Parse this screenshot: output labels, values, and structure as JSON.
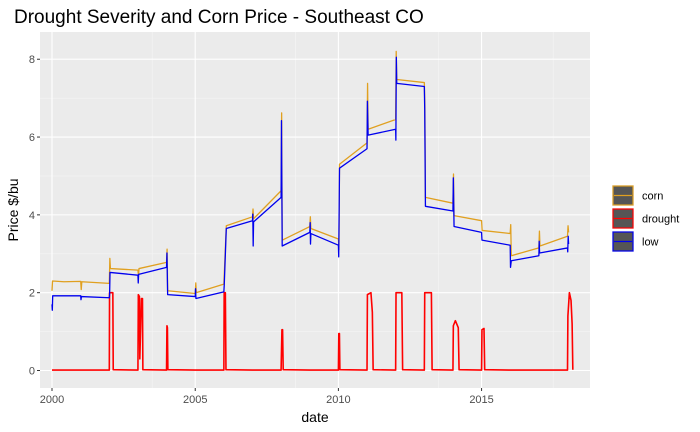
{
  "chart_data": {
    "type": "line",
    "title": "Drought Severity and Corn Price - Southeast CO",
    "xlabel": "date",
    "ylabel": "Price $/bu",
    "x_axis": "date",
    "xlim": [
      "1999-08-01",
      "2018-10-15"
    ],
    "ylim": [
      -0.45,
      8.7
    ],
    "x_ticks": [
      {
        "date": "2000-01-01",
        "label": "2000"
      },
      {
        "date": "2005-01-01",
        "label": "2005"
      },
      {
        "date": "2010-01-01",
        "label": "2010"
      },
      {
        "date": "2015-01-01",
        "label": "2015"
      }
    ],
    "y_ticks": [
      0,
      2,
      4,
      6,
      8
    ],
    "grid": true,
    "panel_background": "#ebebeb",
    "legend_position": "right",
    "series": [
      {
        "name": "corn",
        "color": "#e0a020",
        "points": [
          [
            "2000-01-01",
            2.05
          ],
          [
            "2000-01-08",
            2.3
          ],
          [
            "2000-06-01",
            2.28
          ],
          [
            "2001-01-01",
            2.29
          ],
          [
            "2001-01-08",
            2.08
          ],
          [
            "2001-01-15",
            2.28
          ],
          [
            "2002-01-01",
            2.24
          ],
          [
            "2002-01-08",
            2.88
          ],
          [
            "2002-01-15",
            2.62
          ],
          [
            "2003-01-01",
            2.58
          ],
          [
            "2003-01-08",
            2.42
          ],
          [
            "2003-01-15",
            2.62
          ],
          [
            "2004-01-01",
            2.78
          ],
          [
            "2004-01-08",
            3.12
          ],
          [
            "2004-01-15",
            2.05
          ],
          [
            "2005-01-01",
            1.98
          ],
          [
            "2005-01-08",
            2.25
          ],
          [
            "2005-01-15",
            2.0
          ],
          [
            "2006-01-01",
            2.22
          ],
          [
            "2006-01-08",
            2.55
          ],
          [
            "2006-02-01",
            3.72
          ],
          [
            "2007-01-01",
            3.95
          ],
          [
            "2007-01-08",
            4.15
          ],
          [
            "2007-01-15",
            3.9
          ],
          [
            "2008-01-01",
            4.62
          ],
          [
            "2008-01-08",
            6.62
          ],
          [
            "2008-01-15",
            3.35
          ],
          [
            "2009-01-01",
            3.7
          ],
          [
            "2009-01-08",
            3.95
          ],
          [
            "2009-01-15",
            3.65
          ],
          [
            "2010-01-01",
            3.38
          ],
          [
            "2010-01-08",
            3.1
          ],
          [
            "2010-01-15",
            5.3
          ],
          [
            "2011-01-01",
            5.85
          ],
          [
            "2011-01-08",
            7.38
          ],
          [
            "2011-01-15",
            6.2
          ],
          [
            "2012-01-01",
            6.45
          ],
          [
            "2012-01-08",
            8.2
          ],
          [
            "2012-01-15",
            7.48
          ],
          [
            "2013-01-01",
            7.4
          ],
          [
            "2013-01-08",
            6.8
          ],
          [
            "2013-01-15",
            4.45
          ],
          [
            "2014-01-01",
            4.3
          ],
          [
            "2014-01-08",
            5.05
          ],
          [
            "2014-01-15",
            3.98
          ],
          [
            "2015-01-01",
            3.85
          ],
          [
            "2015-01-08",
            3.6
          ],
          [
            "2016-01-01",
            3.52
          ],
          [
            "2016-01-08",
            3.75
          ],
          [
            "2016-01-15",
            2.95
          ],
          [
            "2017-01-01",
            3.15
          ],
          [
            "2017-01-08",
            3.58
          ],
          [
            "2017-01-15",
            3.2
          ],
          [
            "2018-01-01",
            3.45
          ],
          [
            "2018-01-08",
            3.72
          ],
          [
            "2018-01-15",
            3.55
          ]
        ]
      },
      {
        "name": "drought",
        "color": "#ff0000",
        "points": [
          [
            "2000-01-01",
            0.01
          ],
          [
            "2000-03-01",
            0.01
          ],
          [
            "2001-01-01",
            0.01
          ],
          [
            "2001-03-01",
            0.01
          ],
          [
            "2002-01-01",
            0.01
          ],
          [
            "2002-01-04",
            2.0
          ],
          [
            "2002-02-15",
            2.0
          ],
          [
            "2002-02-20",
            0.02
          ],
          [
            "2003-01-01",
            0.01
          ],
          [
            "2003-01-06",
            1.95
          ],
          [
            "2003-01-20",
            1.9
          ],
          [
            "2003-01-25",
            0.3
          ],
          [
            "2003-02-15",
            1.85
          ],
          [
            "2003-02-28",
            1.85
          ],
          [
            "2003-03-05",
            0.02
          ],
          [
            "2004-01-01",
            0.01
          ],
          [
            "2004-01-06",
            1.15
          ],
          [
            "2004-01-12",
            1.1
          ],
          [
            "2004-01-18",
            0.02
          ],
          [
            "2005-01-01",
            0.01
          ],
          [
            "2005-03-01",
            0.01
          ],
          [
            "2006-01-01",
            0.01
          ],
          [
            "2006-01-05",
            2.0
          ],
          [
            "2006-01-20",
            2.0
          ],
          [
            "2006-01-28",
            0.02
          ],
          [
            "2007-01-01",
            0.01
          ],
          [
            "2007-03-01",
            0.01
          ],
          [
            "2008-01-01",
            0.01
          ],
          [
            "2008-01-06",
            0.5
          ],
          [
            "2008-01-12",
            1.05
          ],
          [
            "2008-01-20",
            1.05
          ],
          [
            "2008-01-28",
            0.02
          ],
          [
            "2009-01-01",
            0.01
          ],
          [
            "2009-03-01",
            0.01
          ],
          [
            "2010-01-01",
            0.01
          ],
          [
            "2010-01-06",
            0.95
          ],
          [
            "2010-01-14",
            0.95
          ],
          [
            "2010-01-20",
            0.02
          ],
          [
            "2011-01-01",
            0.01
          ],
          [
            "2011-01-06",
            1.95
          ],
          [
            "2011-02-20",
            2.0
          ],
          [
            "2011-03-10",
            1.5
          ],
          [
            "2011-03-20",
            0.02
          ],
          [
            "2012-01-01",
            0.01
          ],
          [
            "2012-01-06",
            2.0
          ],
          [
            "2012-03-20",
            2.0
          ],
          [
            "2012-03-30",
            0.02
          ],
          [
            "2013-01-01",
            0.01
          ],
          [
            "2013-01-06",
            2.0
          ],
          [
            "2013-04-01",
            2.0
          ],
          [
            "2013-04-10",
            0.02
          ],
          [
            "2014-01-01",
            0.01
          ],
          [
            "2014-01-06",
            1.15
          ],
          [
            "2014-02-01",
            1.28
          ],
          [
            "2014-03-10",
            1.1
          ],
          [
            "2014-03-20",
            0.02
          ],
          [
            "2015-01-01",
            0.01
          ],
          [
            "2015-01-06",
            1.05
          ],
          [
            "2015-02-01",
            1.08
          ],
          [
            "2015-02-10",
            0.02
          ],
          [
            "2016-01-01",
            0.01
          ],
          [
            "2016-03-01",
            0.01
          ],
          [
            "2017-01-01",
            0.01
          ],
          [
            "2017-03-01",
            0.01
          ],
          [
            "2018-01-01",
            0.01
          ],
          [
            "2018-01-06",
            1.4
          ],
          [
            "2018-01-25",
            2.0
          ],
          [
            "2018-02-15",
            1.8
          ],
          [
            "2018-03-01",
            1.2
          ],
          [
            "2018-03-10",
            0.02
          ]
        ]
      },
      {
        "name": "low",
        "color": "#0000ee",
        "points": [
          [
            "2000-01-01",
            1.7
          ],
          [
            "2000-01-05",
            1.55
          ],
          [
            "2000-01-10",
            1.92
          ],
          [
            "2001-01-01",
            1.92
          ],
          [
            "2001-01-05",
            1.82
          ],
          [
            "2001-01-10",
            1.9
          ],
          [
            "2002-01-01",
            1.87
          ],
          [
            "2002-01-05",
            1.97
          ],
          [
            "2002-01-10",
            2.52
          ],
          [
            "2003-01-01",
            2.45
          ],
          [
            "2003-01-05",
            2.25
          ],
          [
            "2003-01-10",
            2.47
          ],
          [
            "2004-01-01",
            2.65
          ],
          [
            "2004-01-06",
            3.02
          ],
          [
            "2004-01-15",
            1.95
          ],
          [
            "2005-01-01",
            1.9
          ],
          [
            "2005-01-05",
            2.1
          ],
          [
            "2005-01-10",
            1.85
          ],
          [
            "2006-01-01",
            2.02
          ],
          [
            "2006-01-06",
            2.2
          ],
          [
            "2006-02-01",
            3.65
          ],
          [
            "2007-01-01",
            3.85
          ],
          [
            "2007-01-05",
            4.02
          ],
          [
            "2007-01-10",
            3.2
          ],
          [
            "2007-01-15",
            3.82
          ],
          [
            "2008-01-01",
            4.45
          ],
          [
            "2008-01-06",
            6.42
          ],
          [
            "2008-01-15",
            3.2
          ],
          [
            "2009-01-01",
            3.55
          ],
          [
            "2009-01-06",
            3.8
          ],
          [
            "2009-01-10",
            3.25
          ],
          [
            "2009-01-15",
            3.52
          ],
          [
            "2010-01-01",
            3.22
          ],
          [
            "2010-01-05",
            2.92
          ],
          [
            "2010-01-15",
            5.2
          ],
          [
            "2011-01-01",
            5.7
          ],
          [
            "2011-01-06",
            6.92
          ],
          [
            "2011-01-15",
            6.05
          ],
          [
            "2012-01-01",
            6.2
          ],
          [
            "2012-01-04",
            5.92
          ],
          [
            "2012-01-10",
            8.05
          ],
          [
            "2012-01-15",
            7.38
          ],
          [
            "2013-01-01",
            7.3
          ],
          [
            "2013-01-06",
            6.7
          ],
          [
            "2013-01-15",
            4.22
          ],
          [
            "2014-01-01",
            4.1
          ],
          [
            "2014-01-06",
            4.95
          ],
          [
            "2014-01-15",
            3.7
          ],
          [
            "2015-01-01",
            3.55
          ],
          [
            "2015-01-06",
            3.35
          ],
          [
            "2016-01-01",
            3.22
          ],
          [
            "2016-01-05",
            2.65
          ],
          [
            "2016-01-15",
            2.82
          ],
          [
            "2017-01-01",
            2.95
          ],
          [
            "2017-01-05",
            3.32
          ],
          [
            "2017-01-10",
            3.02
          ],
          [
            "2018-01-01",
            3.15
          ],
          [
            "2018-01-04",
            3.05
          ],
          [
            "2018-01-10",
            3.45
          ],
          [
            "2018-01-15",
            3.25
          ]
        ]
      }
    ]
  }
}
